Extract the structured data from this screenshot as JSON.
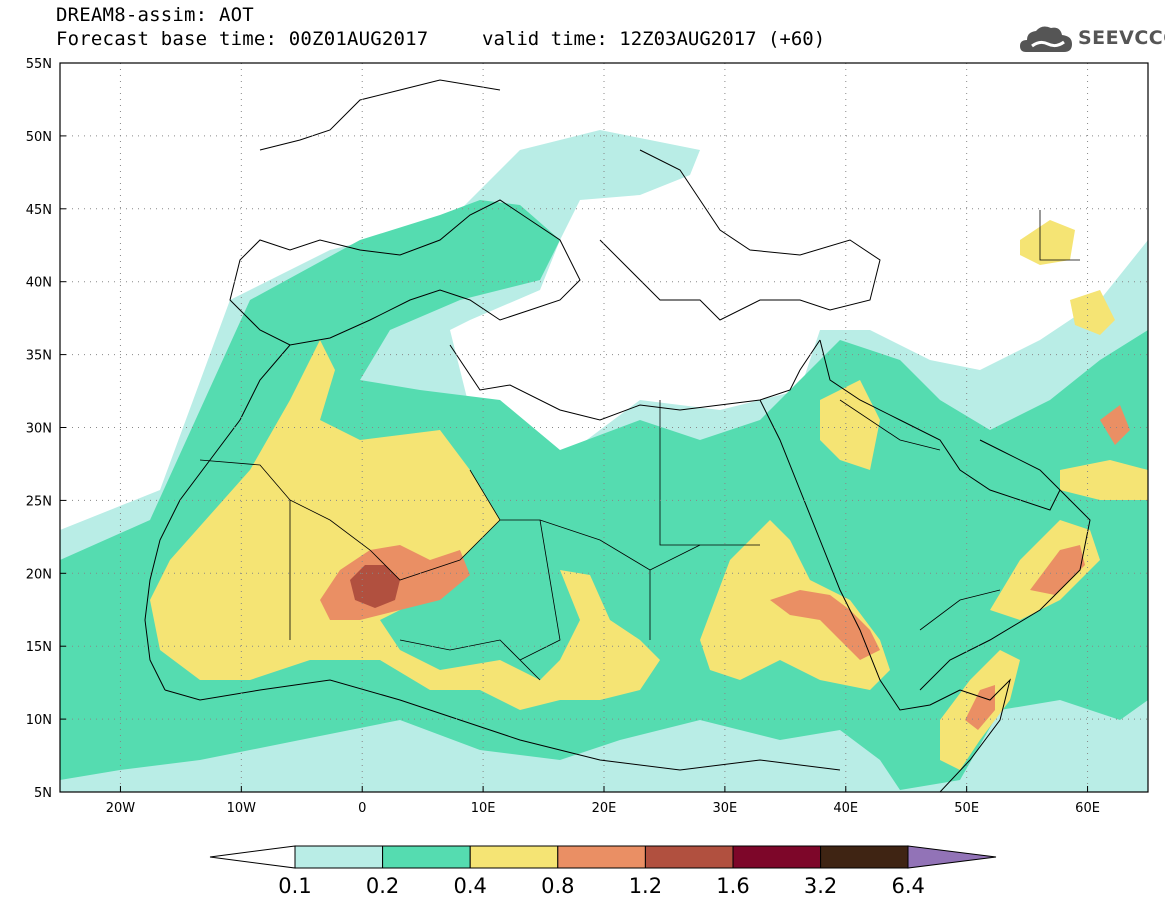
{
  "title": {
    "line1": "DREAM8-assim: AOT",
    "base_time": "Forecast base time: 00Z01AUG2017",
    "valid_time": "valid time: 12Z03AUG2017 (+60)"
  },
  "logo": {
    "text": "SEEVCCC",
    "icon": "cloud-icon"
  },
  "map": {
    "lat_ticks": [
      "55N",
      "50N",
      "45N",
      "40N",
      "35N",
      "30N",
      "25N",
      "20N",
      "15N",
      "10N",
      "5N"
    ],
    "lon_ticks": [
      "20W",
      "10W",
      "0",
      "10E",
      "20E",
      "30E",
      "40E",
      "50E",
      "60E"
    ],
    "colors": {
      "c01": "#b9ede6",
      "c02": "#55dcb0",
      "c04": "#f5e474",
      "c08": "#ea8f64",
      "c12": "#b1503f",
      "c16": "#7d0629",
      "c32": "#3f2413",
      "c64": "#9273b7"
    }
  },
  "colorbar": {
    "labels": [
      "0.1",
      "0.2",
      "0.4",
      "0.8",
      "1.2",
      "1.6",
      "3.2",
      "6.4"
    ]
  }
}
